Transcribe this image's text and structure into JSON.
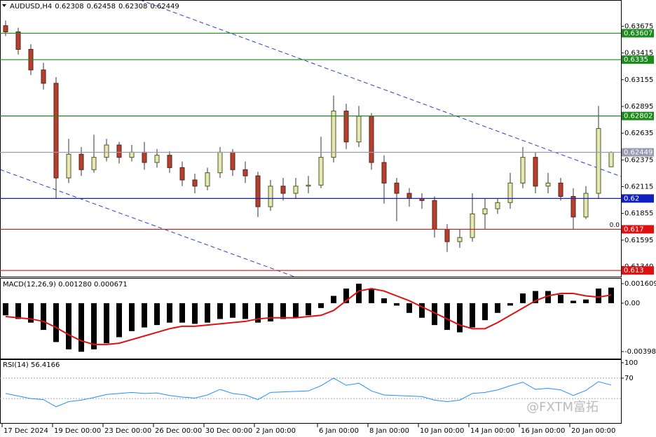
{
  "chart_data": [
    {
      "type": "candlestick",
      "symbol": "AUDUSD,H4",
      "categories": [
        "17 Dec 2024",
        null,
        null,
        null,
        "19 Dec 00:00",
        null,
        null,
        null,
        "23 Dec 00:00",
        null,
        null,
        null,
        "26 Dec 00:00",
        null,
        null,
        null,
        "30 Dec 00:00",
        null,
        null,
        null,
        "2 Jan 00:00",
        null,
        null,
        null,
        null,
        "6 Jan 00:00",
        null,
        null,
        null,
        "8 Jan 00:00",
        null,
        null,
        null,
        "10 Jan 00:00",
        null,
        null,
        null,
        "14 Jan 00:00",
        null,
        null,
        null,
        "16 Jan 00:00",
        null,
        null,
        null,
        "20 Jan 00:00",
        null,
        null,
        null
      ],
      "open": [
        0.6368,
        0.6362,
        0.6345,
        0.6325,
        0.6312,
        0.622,
        0.6243,
        0.6228,
        0.624,
        0.6252,
        0.624,
        0.6245,
        0.6235,
        0.6242,
        0.623,
        0.6218,
        0.6212,
        0.6225,
        0.6245,
        0.6228,
        0.6222,
        0.6192,
        0.6212,
        0.6205,
        0.6212,
        0.6213,
        0.624,
        0.6285,
        0.6255,
        0.628,
        0.6235,
        0.6215,
        0.6205,
        0.62,
        0.6198,
        0.617,
        0.6158,
        0.6162,
        0.6185,
        0.619,
        0.6196,
        0.6215,
        0.624,
        0.6212,
        0.6215,
        0.6202,
        0.6182,
        0.6205,
        0.62308
      ],
      "high": [
        0.6373,
        0.6366,
        0.635,
        0.6332,
        0.6318,
        0.6258,
        0.625,
        0.6262,
        0.6258,
        0.6255,
        0.6252,
        0.6255,
        0.6248,
        0.6246,
        0.6236,
        0.6224,
        0.623,
        0.625,
        0.6248,
        0.6236,
        0.6226,
        0.6218,
        0.622,
        0.622,
        0.6222,
        0.626,
        0.63,
        0.6292,
        0.629,
        0.6283,
        0.6242,
        0.622,
        0.621,
        0.6205,
        0.6202,
        0.6175,
        0.617,
        0.6205,
        0.62,
        0.62,
        0.6225,
        0.625,
        0.6245,
        0.6225,
        0.622,
        0.621,
        0.6212,
        0.629,
        0.62458
      ],
      "low": [
        0.6358,
        0.634,
        0.632,
        0.6306,
        0.62,
        0.6215,
        0.6222,
        0.6225,
        0.6236,
        0.6234,
        0.6236,
        0.6228,
        0.623,
        0.6225,
        0.6212,
        0.6205,
        0.6208,
        0.622,
        0.6222,
        0.6215,
        0.6182,
        0.6188,
        0.6198,
        0.62,
        0.6205,
        0.621,
        0.6235,
        0.6248,
        0.625,
        0.6228,
        0.6195,
        0.6178,
        0.6192,
        0.619,
        0.6162,
        0.6148,
        0.6152,
        0.6158,
        0.617,
        0.6185,
        0.619,
        0.621,
        0.6205,
        0.6205,
        0.6198,
        0.617,
        0.618,
        0.62,
        0.62308
      ],
      "close": [
        0.6362,
        0.6345,
        0.6325,
        0.6312,
        0.622,
        0.6243,
        0.6228,
        0.624,
        0.6252,
        0.624,
        0.6245,
        0.6235,
        0.6242,
        0.623,
        0.6218,
        0.6212,
        0.6225,
        0.6245,
        0.6228,
        0.6222,
        0.6192,
        0.6212,
        0.6205,
        0.6212,
        0.6213,
        0.624,
        0.6285,
        0.6255,
        0.628,
        0.6235,
        0.6215,
        0.6205,
        0.62,
        0.6198,
        0.617,
        0.6158,
        0.6162,
        0.6185,
        0.619,
        0.6196,
        0.6215,
        0.624,
        0.6212,
        0.6215,
        0.6202,
        0.6182,
        0.6205,
        0.6268,
        0.62449
      ],
      "up_color": "#e8e6b4",
      "down_color": "#b5402f",
      "ylim": [
        0.6124,
        0.6393
      ],
      "yticks": [
        0.63675,
        0.63415,
        0.63155,
        0.62895,
        0.62635,
        0.62375,
        0.62115,
        0.61855,
        0.61595,
        {
          "value": 0.6134,
          "label": "0.61340"
        }
      ],
      "levels": [
        {
          "value": 0.63607,
          "color": "#1a8a1a"
        },
        {
          "value": 0.6335,
          "color": "#1a8a1a"
        },
        {
          "value": 0.62802,
          "color": "#1a8a1a"
        },
        {
          "value": 0.62449,
          "color": "#9a9ab0"
        },
        {
          "value": 0.62,
          "color": "#1020c0"
        },
        {
          "value": 0.617,
          "color": "#e01010"
        },
        {
          "value": 0.613,
          "color": "#e01010"
        }
      ],
      "level_note": "0.0"
    },
    {
      "type": "macd",
      "title": "MACD(12,26,9) 0.001280 0.000671",
      "series": [
        {
          "color": "#000000",
          "values": [
            -0.001,
            -0.0013,
            -0.0016,
            -0.0022,
            -0.0032,
            -0.0038,
            -0.004,
            -0.0038,
            -0.0033,
            -0.0028,
            -0.0023,
            -0.002,
            -0.0018,
            -0.0016,
            -0.0016,
            -0.0017,
            -0.0016,
            -0.0013,
            -0.0012,
            -0.0013,
            -0.0016,
            -0.0015,
            -0.0013,
            -0.0012,
            -0.001,
            -0.0004,
            0.0006,
            0.0012,
            0.0016,
            0.0012,
            0.0004,
            -0.0002,
            -0.0008,
            -0.0012,
            -0.0018,
            -0.0022,
            -0.0024,
            -0.002,
            -0.0014,
            -0.0008,
            -0.0002,
            0.0008,
            0.001,
            0.001,
            0.0007,
            0.0002,
            0.0003,
            0.0012,
            0.00128
          ]
        },
        {
          "color": "#e01010",
          "values": [
            -0.0011,
            -0.0012,
            -0.0013,
            -0.0015,
            -0.002,
            -0.0026,
            -0.0031,
            -0.0034,
            -0.0034,
            -0.0033,
            -0.003,
            -0.0027,
            -0.0024,
            -0.0021,
            -0.0019,
            -0.0019,
            -0.0018,
            -0.0017,
            -0.0016,
            -0.0015,
            -0.0013,
            -0.0012,
            -0.0012,
            -0.0012,
            -0.0011,
            -0.001,
            -0.0006,
            0.0002,
            0.001,
            0.0012,
            0.001,
            0.0006,
            0.0002,
            -0.0003,
            -0.0008,
            -0.0013,
            -0.0018,
            -0.0021,
            -0.0021,
            -0.0016,
            -0.001,
            -0.0004,
            0.0002,
            0.0006,
            0.0008,
            0.0008,
            0.0006,
            0.0005,
            0.000671
          ]
        }
      ],
      "ylim": [
        -0.00456,
        0.00207
      ],
      "yticks": [
        0.001609,
        {
          "value": 0,
          "label": "0.00"
        },
        -0.003983
      ]
    },
    {
      "type": "line",
      "title": "RSI(14) 56.4166",
      "color": "#1e90ff",
      "values": [
        40,
        35,
        30,
        28,
        14,
        24,
        27,
        32,
        38,
        40,
        42,
        40,
        41,
        36,
        33,
        31,
        37,
        48,
        40,
        37,
        28,
        42,
        43,
        44,
        45,
        55,
        70,
        56,
        60,
        45,
        37,
        36,
        35,
        34,
        27,
        24,
        27,
        40,
        42,
        47,
        55,
        62,
        48,
        50,
        47,
        36,
        46,
        63,
        56.4166
      ],
      "ylim": [
        -17.7,
        106.8
      ],
      "yticks": [
        100,
        70
      ],
      "levels": [
        70,
        30
      ]
    }
  ],
  "watermark": "@FXTM富拓"
}
